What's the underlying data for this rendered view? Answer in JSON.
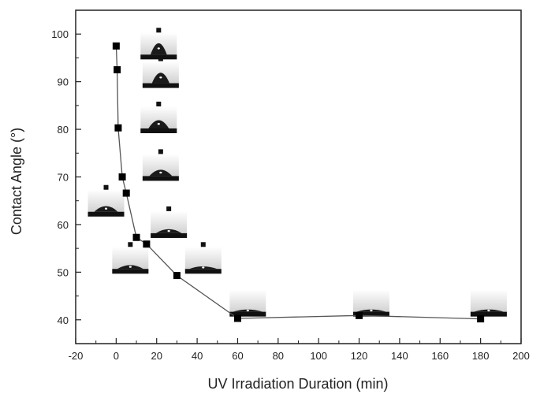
{
  "chart_data": {
    "type": "scatter",
    "title": "",
    "xlabel": "UV Irradiation Duration (min)",
    "ylabel": "Contact Angle (°)",
    "xlim": [
      -20,
      200
    ],
    "ylim": [
      35,
      105
    ],
    "x_ticks": [
      -20,
      0,
      20,
      40,
      60,
      80,
      100,
      120,
      140,
      160,
      180,
      200
    ],
    "y_ticks": [
      40,
      50,
      60,
      70,
      80,
      90,
      100
    ],
    "grid": false,
    "legend": "none",
    "series": [
      {
        "marker": "square",
        "line": true,
        "color": "#000000",
        "x": [
          0,
          0.5,
          1,
          3,
          5,
          10,
          15,
          30,
          60,
          120,
          180
        ],
        "y": [
          97.5,
          92.5,
          80.3,
          70.0,
          66.6,
          57.3,
          55.9,
          49.3,
          40.3,
          40.9,
          40.2
        ]
      }
    ],
    "annotations": [
      {
        "kind": "droplet-photo",
        "x": 21,
        "y": 97.5,
        "angle": 97.5
      },
      {
        "kind": "droplet-photo",
        "x": 22,
        "y": 91.5,
        "angle": 92.5
      },
      {
        "kind": "droplet-photo",
        "x": 21,
        "y": 82,
        "angle": 80.3
      },
      {
        "kind": "droplet-photo",
        "x": 22,
        "y": 72,
        "angle": 70.0
      },
      {
        "kind": "droplet-photo",
        "x": -5,
        "y": 64.5,
        "angle": 66.6
      },
      {
        "kind": "droplet-photo",
        "x": 26,
        "y": 60,
        "angle": 57.3
      },
      {
        "kind": "droplet-photo",
        "x": 7,
        "y": 52.5,
        "angle": 55.9
      },
      {
        "kind": "droplet-photo",
        "x": 43,
        "y": 52.5,
        "angle": 49.3
      },
      {
        "kind": "droplet-photo",
        "x": 65,
        "y": 43.5,
        "angle": 40.3
      },
      {
        "kind": "droplet-photo",
        "x": 126,
        "y": 43.5,
        "angle": 40.9
      },
      {
        "kind": "droplet-photo",
        "x": 184,
        "y": 43.5,
        "angle": 40.2
      }
    ]
  }
}
